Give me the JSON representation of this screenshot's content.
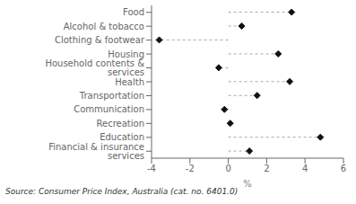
{
  "chart_data": {
    "type": "lollipop",
    "orientation": "horizontal",
    "categories": [
      "Food",
      "Alcohol & tobacco",
      "Clothing & footwear",
      "Housing",
      "Household contents & services",
      "Health",
      "Transportation",
      "Communication",
      "Recreation",
      "Education",
      "Financial & insurance services"
    ],
    "values": [
      3.3,
      0.7,
      -3.6,
      2.6,
      -0.5,
      3.2,
      1.5,
      -0.2,
      0.1,
      4.8,
      1.1
    ],
    "xlim": [
      -4,
      6
    ],
    "xticks": [
      -4,
      -2,
      0,
      2,
      4,
      6
    ],
    "xlabel": "%",
    "annotations": [
      "Source: Consumer Price Index, Australia  (cat.  no.  6401.0)"
    ],
    "color": "#111111",
    "marker": "diamond",
    "line_style": "dashed",
    "grid": false
  }
}
